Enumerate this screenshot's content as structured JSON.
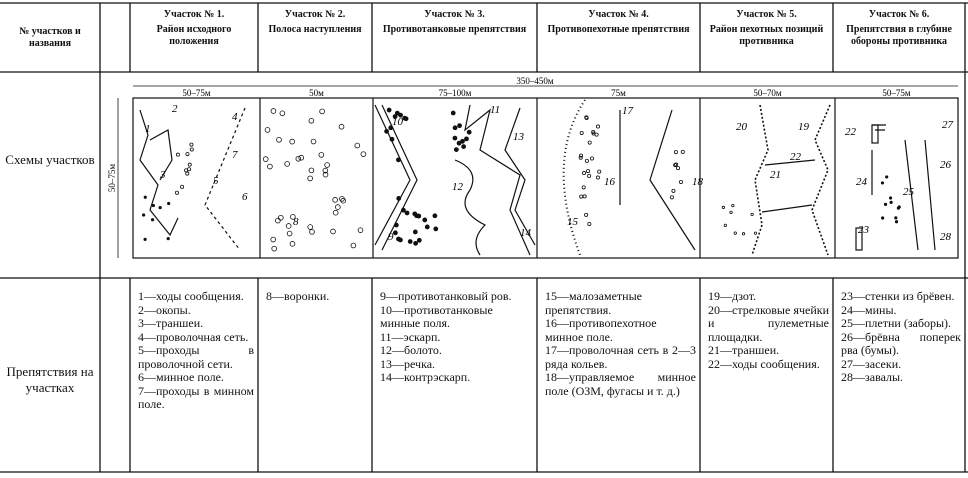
{
  "header": {
    "row_label": "№ участков и названия",
    "sections": [
      {
        "title": "Участок № 1.",
        "name": "Район исходного положения"
      },
      {
        "title": "Участок № 2.",
        "name": "Полоса наступления"
      },
      {
        "title": "Участок № 3.",
        "name": "Противотанковые препятствия"
      },
      {
        "title": "Участок № 4.",
        "name": "Противопехотные препятствия"
      },
      {
        "title": "Участок № 5.",
        "name": "Район пехотных позиций противника"
      },
      {
        "title": "Участок № 6.",
        "name": "Препятствия в глубине обороны противника"
      }
    ]
  },
  "schemes": {
    "row_label": "Схемы участков",
    "total_width": "350–450м",
    "depth": "50–75м",
    "widths": [
      "50–75м",
      "50м",
      "75–100м",
      "75м",
      "50–70м",
      "50–75м"
    ],
    "markers": [
      [
        "1",
        "2",
        "3",
        "4",
        "5",
        "6",
        "7"
      ],
      [
        "8"
      ],
      [
        "9",
        "10",
        "11",
        "12",
        "13",
        "14"
      ],
      [
        "15",
        "16",
        "17",
        "18"
      ],
      [
        "19",
        "20",
        "21",
        "22"
      ],
      [
        "22",
        "23",
        "24",
        "25",
        "26",
        "27",
        "28"
      ]
    ]
  },
  "obstacles": {
    "row_label": "Препятствия на участках",
    "sections": [
      [
        "1—ходы сообщения.",
        "2—окопы.",
        "3—траншеи.",
        "4—проволочная сеть.",
        "5—проходы в проволочной сети.",
        "6—минное поле.",
        "7—проходы в минном поле."
      ],
      [
        "8—воронки."
      ],
      [
        "9—противотанковый ров.",
        "10—противотанковые минные поля.",
        "11—эскарп.",
        "12—болото.",
        "13—речка.",
        "14—контрэскарп."
      ],
      [
        "15—малозаметные препятствия.",
        "16—противопехотное минное поле.",
        "17—проволочная сеть в 2—3 ряда кольев.",
        "18—управляемое минное поле (ОЗМ, фугасы и т. д.)"
      ],
      [
        "19—дзот.",
        "20—стрелковые ячейки и пулеметные площадки.",
        "21—траншеи.",
        "22—ходы сообщения."
      ],
      [
        "23—стенки из брёвен.",
        "24—мины.",
        "25—плетни (заборы).",
        "26—брёвна поперек рва (бумы).",
        "27—засеки.",
        "28—завалы."
      ]
    ]
  }
}
